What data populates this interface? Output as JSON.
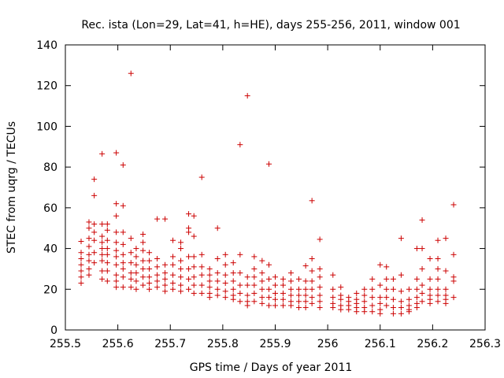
{
  "chart_data": {
    "type": "scatter",
    "title": "Rec. ista (Lon=29, Lat=41, h=HE), days 255-256, 2011, window 001",
    "xlabel": "GPS time / Days of year 2011",
    "ylabel": "STEC from uqrg / TECUs",
    "xlim": [
      255.5,
      256.3
    ],
    "ylim": [
      0,
      140
    ],
    "x_ticks": [
      255.5,
      255.6,
      255.7,
      255.8,
      255.9,
      256,
      256.1,
      256.2,
      256.3
    ],
    "x_tick_labels": [
      "255.5",
      "255.6",
      "255.7",
      "255.8",
      "255.9",
      "256",
      "256.1",
      "256.2",
      "256.3"
    ],
    "y_ticks": [
      0,
      20,
      40,
      60,
      80,
      100,
      120,
      140
    ],
    "y_tick_labels": [
      "0",
      "20",
      "40",
      "60",
      "80",
      "100",
      "120",
      "140"
    ],
    "grid": false,
    "legend": "none",
    "marker": "plus",
    "color": "#cc0000",
    "series": [
      {
        "x": [
          255.53,
          255.53,
          255.53,
          255.53,
          255.53,
          255.53,
          255.53,
          255.545,
          255.545,
          255.545,
          255.545,
          255.545,
          255.545,
          255.545,
          255.545,
          255.555,
          255.555,
          255.555,
          255.555,
          255.555,
          255.555,
          255.555,
          255.57,
          255.57,
          255.57,
          255.57,
          255.57,
          255.57,
          255.57,
          255.57,
          255.57,
          255.58,
          255.58,
          255.58,
          255.58,
          255.58,
          255.58,
          255.58,
          255.58,
          255.597,
          255.597,
          255.597,
          255.597,
          255.597,
          255.597,
          255.597,
          255.597,
          255.597,
          255.597,
          255.597,
          255.61,
          255.61,
          255.61,
          255.61,
          255.61,
          255.61,
          255.61,
          255.61,
          255.61,
          255.625,
          255.625,
          255.625,
          255.625,
          255.625,
          255.625,
          255.625,
          255.635,
          255.635,
          255.635,
          255.635,
          255.635,
          255.635,
          255.648,
          255.648,
          255.648,
          255.648,
          255.648,
          255.648,
          255.648,
          255.66,
          255.66,
          255.66,
          255.66,
          255.66,
          255.66,
          255.675,
          255.675,
          255.675,
          255.675,
          255.675,
          255.675,
          255.69,
          255.69,
          255.69,
          255.69,
          255.69,
          255.69,
          255.705,
          255.705,
          255.705,
          255.705,
          255.705,
          255.705,
          255.72,
          255.72,
          255.72,
          255.72,
          255.72,
          255.72,
          255.72,
          255.735,
          255.735,
          255.735,
          255.735,
          255.735,
          255.735,
          255.735,
          255.745,
          255.745,
          255.745,
          255.745,
          255.745,
          255.745,
          255.745,
          255.76,
          255.76,
          255.76,
          255.76,
          255.76,
          255.76,
          255.775,
          255.775,
          255.775,
          255.775,
          255.775,
          255.775,
          255.79,
          255.79,
          255.79,
          255.79,
          255.79,
          255.79,
          255.805,
          255.805,
          255.805,
          255.805,
          255.805,
          255.805,
          255.82,
          255.82,
          255.82,
          255.82,
          255.82,
          255.82,
          255.833,
          255.833,
          255.833,
          255.833,
          255.833,
          255.833,
          255.847,
          255.847,
          255.847,
          255.847,
          255.847,
          255.847,
          255.86,
          255.86,
          255.86,
          255.86,
          255.86,
          255.86,
          255.875,
          255.875,
          255.875,
          255.875,
          255.875,
          255.875,
          255.888,
          255.888,
          255.888,
          255.888,
          255.888,
          255.888,
          255.9,
          255.9,
          255.9,
          255.9,
          255.9,
          255.915,
          255.915,
          255.915,
          255.915,
          255.915,
          255.93,
          255.93,
          255.93,
          255.93,
          255.93,
          255.93,
          255.945,
          255.945,
          255.945,
          255.945,
          255.945,
          255.958,
          255.958,
          255.958,
          255.958,
          255.958,
          255.958,
          255.97,
          255.97,
          255.97,
          255.97,
          255.97,
          255.97,
          255.97,
          255.985,
          255.985,
          255.985,
          255.985,
          255.985,
          255.985,
          255.985,
          256.01,
          256.01,
          256.01,
          256.01,
          256.01,
          256.025,
          256.025,
          256.025,
          256.025,
          256.025,
          256.04,
          256.04,
          256.04,
          256.04,
          256.055,
          256.055,
          256.055,
          256.055,
          256.055,
          256.07,
          256.07,
          256.07,
          256.07,
          256.07,
          256.085,
          256.085,
          256.085,
          256.085,
          256.085,
          256.1,
          256.1,
          256.1,
          256.1,
          256.1,
          256.1,
          256.112,
          256.112,
          256.112,
          256.112,
          256.112,
          256.125,
          256.125,
          256.125,
          256.125,
          256.125,
          256.14,
          256.14,
          256.14,
          256.14,
          256.14,
          256.14,
          256.155,
          256.155,
          256.155,
          256.155,
          256.155,
          256.17,
          256.17,
          256.17,
          256.17,
          256.17,
          256.17,
          256.18,
          256.18,
          256.18,
          256.18,
          256.18,
          256.18,
          256.195,
          256.195,
          256.195,
          256.195,
          256.195,
          256.195,
          256.21,
          256.21,
          256.21,
          256.21,
          256.21,
          256.21,
          256.21,
          256.225,
          256.225,
          256.225,
          256.225,
          256.225,
          256.225,
          256.24,
          256.24,
          256.24,
          256.24,
          256.24
        ],
        "y": [
          43.5,
          38,
          35,
          32,
          29,
          26,
          23,
          53,
          50,
          45,
          41,
          37,
          34,
          30,
          27,
          74,
          66,
          52,
          48,
          44,
          38,
          33,
          86.5,
          52,
          46,
          43,
          40,
          37,
          34,
          29,
          25,
          52,
          49,
          44,
          40,
          37,
          33,
          29,
          24,
          87,
          62,
          56,
          48,
          43,
          39,
          36,
          32,
          27,
          24,
          21,
          81,
          61,
          48,
          42,
          37,
          33,
          30,
          26,
          21,
          126,
          45,
          38,
          33,
          28,
          25,
          21,
          40,
          36,
          32,
          28,
          24,
          20,
          47,
          43,
          39,
          34,
          30,
          26,
          22,
          38,
          34,
          30,
          26,
          23,
          20,
          54.5,
          35,
          31,
          27,
          24,
          21,
          54.5,
          32,
          28,
          25,
          22,
          19,
          44,
          36,
          32,
          27,
          23,
          20,
          43,
          40,
          34,
          30,
          26,
          22,
          19,
          57,
          50,
          48,
          36,
          30,
          25,
          20,
          56,
          46,
          36,
          31,
          26,
          22,
          18,
          75,
          37,
          31,
          27,
          22,
          18,
          30,
          27,
          24,
          21,
          18,
          16,
          50,
          35,
          28,
          24,
          20,
          17,
          37,
          32,
          27,
          23,
          19,
          16,
          33,
          28,
          24,
          20,
          17,
          15,
          91,
          37,
          28,
          22,
          18,
          14,
          115,
          26,
          22,
          17,
          14,
          12,
          36,
          30,
          26,
          22,
          18,
          14,
          34,
          28,
          24,
          20,
          16,
          13,
          81.5,
          32,
          25,
          20,
          16,
          12,
          26,
          22,
          18,
          15,
          12,
          25,
          22,
          18,
          15,
          12,
          28,
          24,
          20,
          17,
          14,
          12,
          25,
          20,
          17,
          14,
          11,
          31.5,
          24,
          20,
          17,
          14,
          11,
          63.5,
          35,
          29,
          24,
          20,
          16,
          13,
          44.5,
          30,
          26,
          21,
          17,
          14,
          11,
          27,
          20,
          16,
          13,
          11,
          21,
          17,
          15,
          12,
          10,
          16,
          14,
          12,
          10,
          18,
          15,
          13,
          11,
          9,
          20,
          17,
          14,
          11,
          9,
          25,
          20,
          16,
          12,
          9,
          32,
          22,
          16,
          13,
          10,
          8,
          31,
          25,
          20,
          16,
          12,
          25,
          20,
          15,
          11,
          8,
          45,
          27,
          19,
          14,
          11,
          8,
          20,
          15,
          12,
          10,
          9,
          40,
          25,
          20,
          16,
          13,
          11,
          54,
          40,
          30,
          22,
          18,
          14,
          35,
          25,
          20,
          17,
          15,
          13,
          44,
          35,
          30,
          25,
          20,
          17,
          14,
          45,
          29,
          20,
          17,
          15,
          13,
          61.5,
          37,
          26,
          24,
          16
        ]
      }
    ]
  }
}
